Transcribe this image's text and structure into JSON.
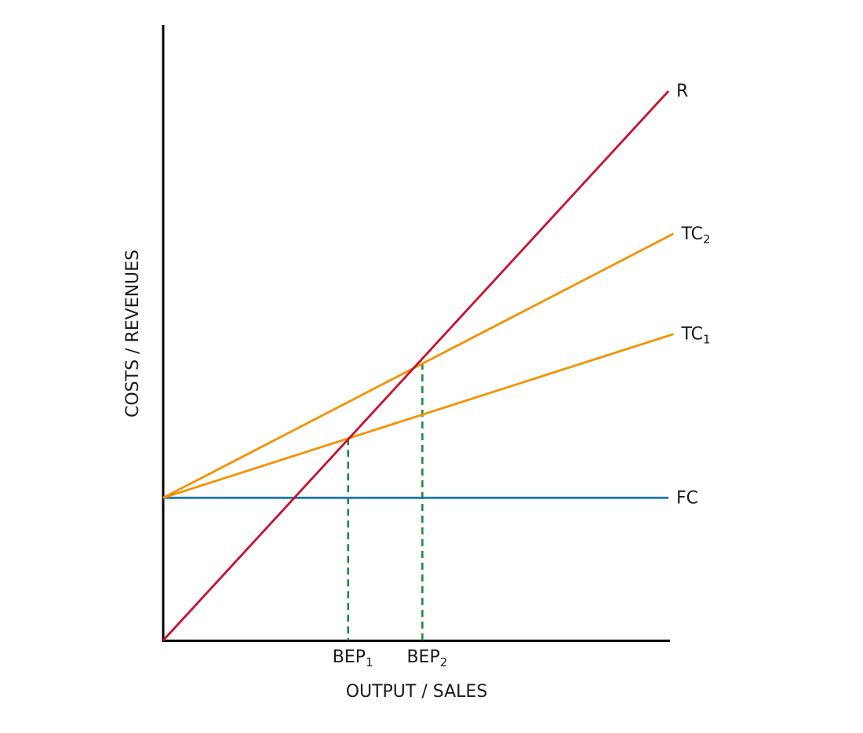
{
  "chart_data": {
    "type": "line",
    "xlabel": "OUTPUT / SALES",
    "ylabel": "COSTS / REVENUES",
    "xlim": [
      0,
      100
    ],
    "ylim": [
      0,
      100
    ],
    "grid": false,
    "legend": "none",
    "series": [
      {
        "name": "R",
        "label": "R",
        "sub": "",
        "color": "#c8102e",
        "x": [
          0,
          100
        ],
        "y": [
          0,
          104
        ]
      },
      {
        "name": "TC2",
        "label": "TC",
        "sub": "2",
        "color": "#f39200",
        "x": [
          0,
          101
        ],
        "y": [
          27,
          77
        ]
      },
      {
        "name": "TC1",
        "label": "TC",
        "sub": "1",
        "color": "#f39200",
        "x": [
          0,
          101
        ],
        "y": [
          27,
          58
        ]
      },
      {
        "name": "FC",
        "label": "FC",
        "sub": "",
        "color": "#1f77b4",
        "x": [
          0,
          100
        ],
        "y": [
          27,
          27
        ]
      }
    ],
    "break_even_points": [
      {
        "label": "BEP",
        "sub": "1",
        "x": 36.6,
        "y": 38.3,
        "color": "#1e8c3a"
      },
      {
        "label": "BEP",
        "sub": "2",
        "x": 51.3,
        "y": 52.6,
        "color": "#1e8c3a"
      }
    ]
  }
}
